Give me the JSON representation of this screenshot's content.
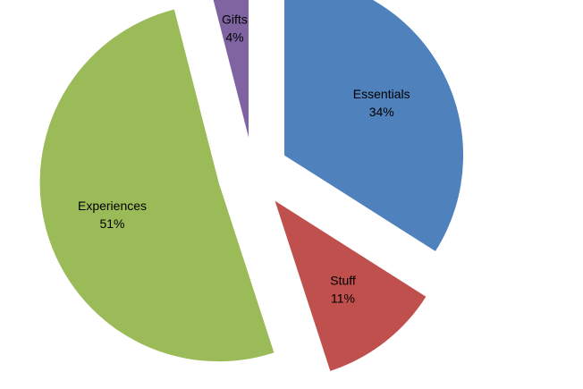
{
  "chart_data": {
    "type": "pie",
    "title": "",
    "legend": "none",
    "exploded": true,
    "slices": [
      {
        "label": "Essentials",
        "value": 34,
        "value_label": "34%",
        "color": "#4F81BD"
      },
      {
        "label": "Stuff",
        "value": 11,
        "value_label": "11%",
        "color": "#C0504D"
      },
      {
        "label": "Experiences",
        "value": 51,
        "value_label": "51%",
        "color": "#9BBB59"
      },
      {
        "label": "Gifts",
        "value": 4,
        "value_label": "4%",
        "color": "#8064A2"
      }
    ]
  }
}
